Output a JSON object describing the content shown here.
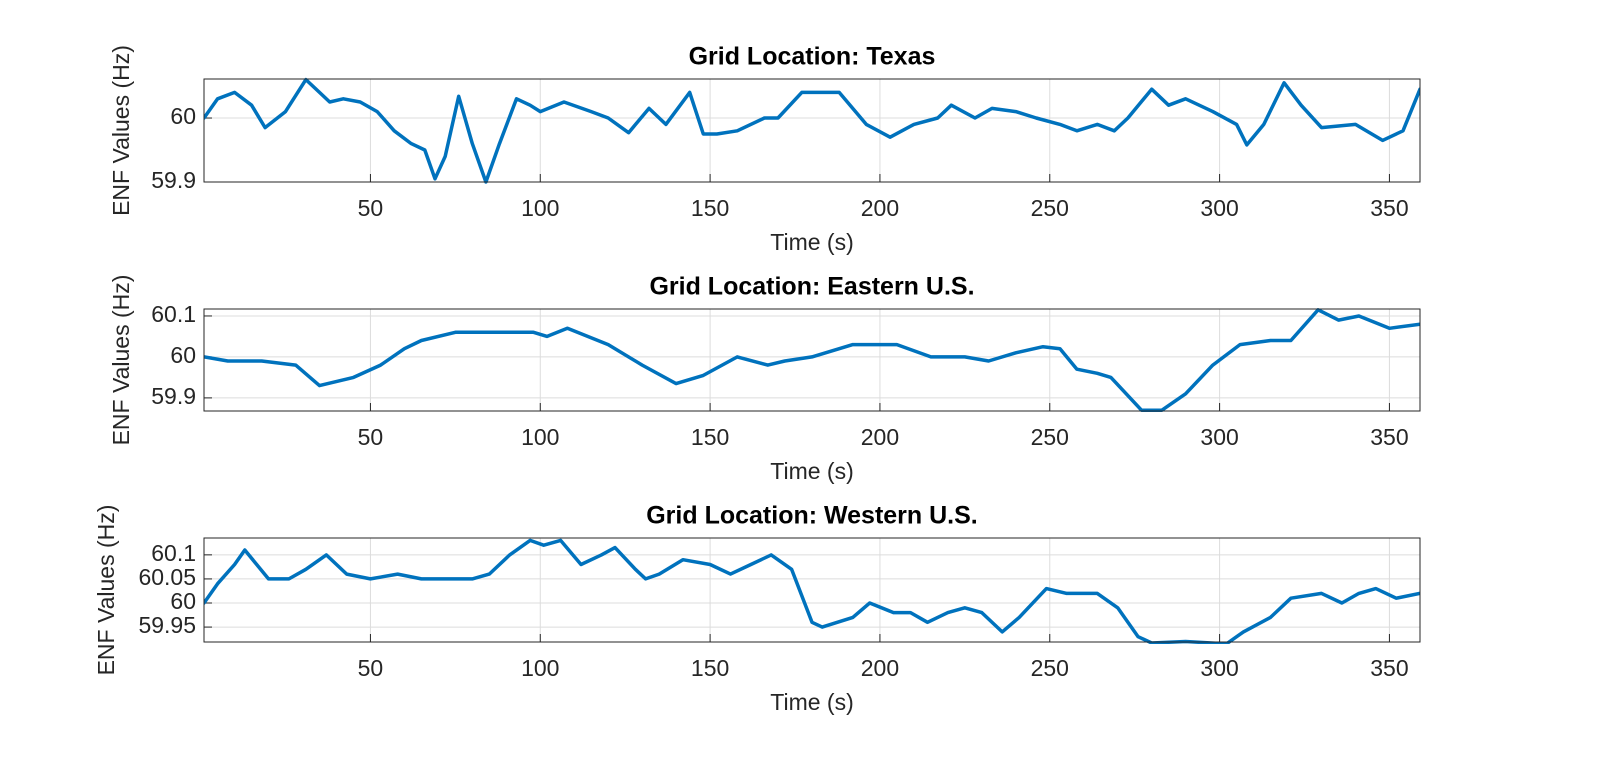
{
  "chart_data": [
    {
      "type": "line",
      "title": "Grid Location: Texas",
      "xlabel": "Time (s)",
      "ylabel": "ENF Values (Hz)",
      "color": "#0072bd",
      "grid": true,
      "xlim": [
        1,
        359
      ],
      "ylim": [
        59.9,
        60.061
      ],
      "xticks": [
        50,
        100,
        150,
        200,
        250,
        300,
        350
      ],
      "yticks": [
        59.9,
        60
      ],
      "x": [
        1,
        5,
        10,
        15,
        19,
        25,
        31,
        35,
        38,
        42,
        47,
        52,
        57,
        62,
        66,
        69,
        72,
        76,
        80,
        84,
        88,
        93,
        97,
        100,
        107,
        115,
        120,
        126,
        132,
        137,
        144,
        148,
        152,
        158,
        166,
        170,
        177,
        188,
        196,
        203,
        210,
        217,
        221,
        228,
        233,
        240,
        246,
        253,
        258,
        264,
        269,
        273,
        280,
        285,
        290,
        298,
        305,
        308,
        313,
        319,
        324,
        330,
        340,
        348,
        354,
        359
      ],
      "values": [
        60.0,
        60.03,
        60.04,
        60.02,
        59.985,
        60.01,
        60.06,
        60.04,
        60.025,
        60.03,
        60.025,
        60.01,
        59.98,
        59.96,
        59.95,
        59.905,
        59.94,
        60.034,
        59.96,
        59.9,
        59.96,
        60.03,
        60.02,
        60.01,
        60.025,
        60.01,
        60.0,
        59.977,
        60.015,
        59.99,
        60.04,
        59.975,
        59.975,
        59.98,
        60.0,
        60.0,
        60.04,
        60.04,
        59.99,
        59.97,
        59.99,
        60.0,
        60.02,
        60.0,
        60.015,
        60.01,
        60.0,
        59.99,
        59.98,
        59.99,
        59.98,
        60.0,
        60.045,
        60.02,
        60.03,
        60.01,
        59.99,
        59.958,
        59.99,
        60.055,
        60.02,
        59.985,
        59.99,
        59.965,
        59.98,
        60.045
      ]
    },
    {
      "type": "line",
      "title": "Grid Location: Eastern U.S.",
      "xlabel": "Time (s)",
      "ylabel": "ENF Values (Hz)",
      "color": "#0072bd",
      "grid": true,
      "xlim": [
        1,
        359
      ],
      "ylim": [
        59.868,
        60.117
      ],
      "xticks": [
        50,
        100,
        150,
        200,
        250,
        300,
        350
      ],
      "yticks": [
        59.9,
        60,
        60.1
      ],
      "x": [
        1,
        8,
        18,
        28,
        35,
        45,
        53,
        60,
        65,
        75,
        90,
        98,
        102,
        108,
        120,
        130,
        140,
        148,
        158,
        167,
        172,
        180,
        192,
        205,
        215,
        225,
        232,
        240,
        248,
        253,
        258,
        264,
        268,
        277,
        283,
        290,
        298,
        306,
        315,
        321,
        329,
        335,
        341,
        350,
        359
      ],
      "values": [
        60.0,
        59.99,
        59.99,
        59.98,
        59.93,
        59.95,
        59.98,
        60.02,
        60.04,
        60.06,
        60.06,
        60.06,
        60.05,
        60.07,
        60.03,
        59.98,
        59.935,
        59.955,
        60.0,
        59.98,
        59.99,
        60.0,
        60.03,
        60.03,
        60.0,
        60.0,
        59.99,
        60.01,
        60.025,
        60.02,
        59.97,
        59.96,
        59.95,
        59.87,
        59.87,
        59.91,
        59.98,
        60.03,
        60.04,
        60.04,
        60.115,
        60.09,
        60.1,
        60.07,
        60.08
      ]
    },
    {
      "type": "line",
      "title": "Grid Location: Western U.S.",
      "xlabel": "Time (s)",
      "ylabel": "ENF Values (Hz)",
      "color": "#0072bd",
      "grid": true,
      "xlim": [
        1,
        359
      ],
      "ylim": [
        59.919,
        60.135
      ],
      "xticks": [
        50,
        100,
        150,
        200,
        250,
        300,
        350
      ],
      "yticks": [
        59.95,
        60,
        60.05,
        60.1
      ],
      "x": [
        1,
        5,
        10,
        13,
        20,
        26,
        31,
        37,
        43,
        50,
        58,
        65,
        80,
        85,
        91,
        97,
        101,
        106,
        112,
        118,
        122,
        128,
        131,
        135,
        142,
        150,
        156,
        162,
        168,
        174,
        180,
        183,
        192,
        197,
        204,
        209,
        214,
        220,
        225,
        230,
        236,
        241,
        249,
        255,
        264,
        270,
        276,
        280,
        290,
        302,
        307,
        315,
        321,
        330,
        336,
        341,
        346,
        352,
        359
      ],
      "values": [
        60.0,
        60.04,
        60.08,
        60.11,
        60.05,
        60.05,
        60.07,
        60.1,
        60.06,
        60.05,
        60.06,
        60.05,
        60.05,
        60.06,
        60.1,
        60.13,
        60.12,
        60.13,
        60.08,
        60.1,
        60.115,
        60.07,
        60.05,
        60.06,
        60.09,
        60.08,
        60.06,
        60.08,
        60.1,
        60.07,
        59.96,
        59.95,
        59.97,
        60.0,
        59.98,
        59.98,
        59.96,
        59.98,
        59.99,
        59.98,
        59.94,
        59.97,
        60.03,
        60.02,
        60.02,
        59.99,
        59.93,
        59.917,
        59.92,
        59.915,
        59.94,
        59.97,
        60.01,
        60.02,
        60.0,
        60.02,
        60.03,
        60.01,
        60.02
      ]
    }
  ]
}
